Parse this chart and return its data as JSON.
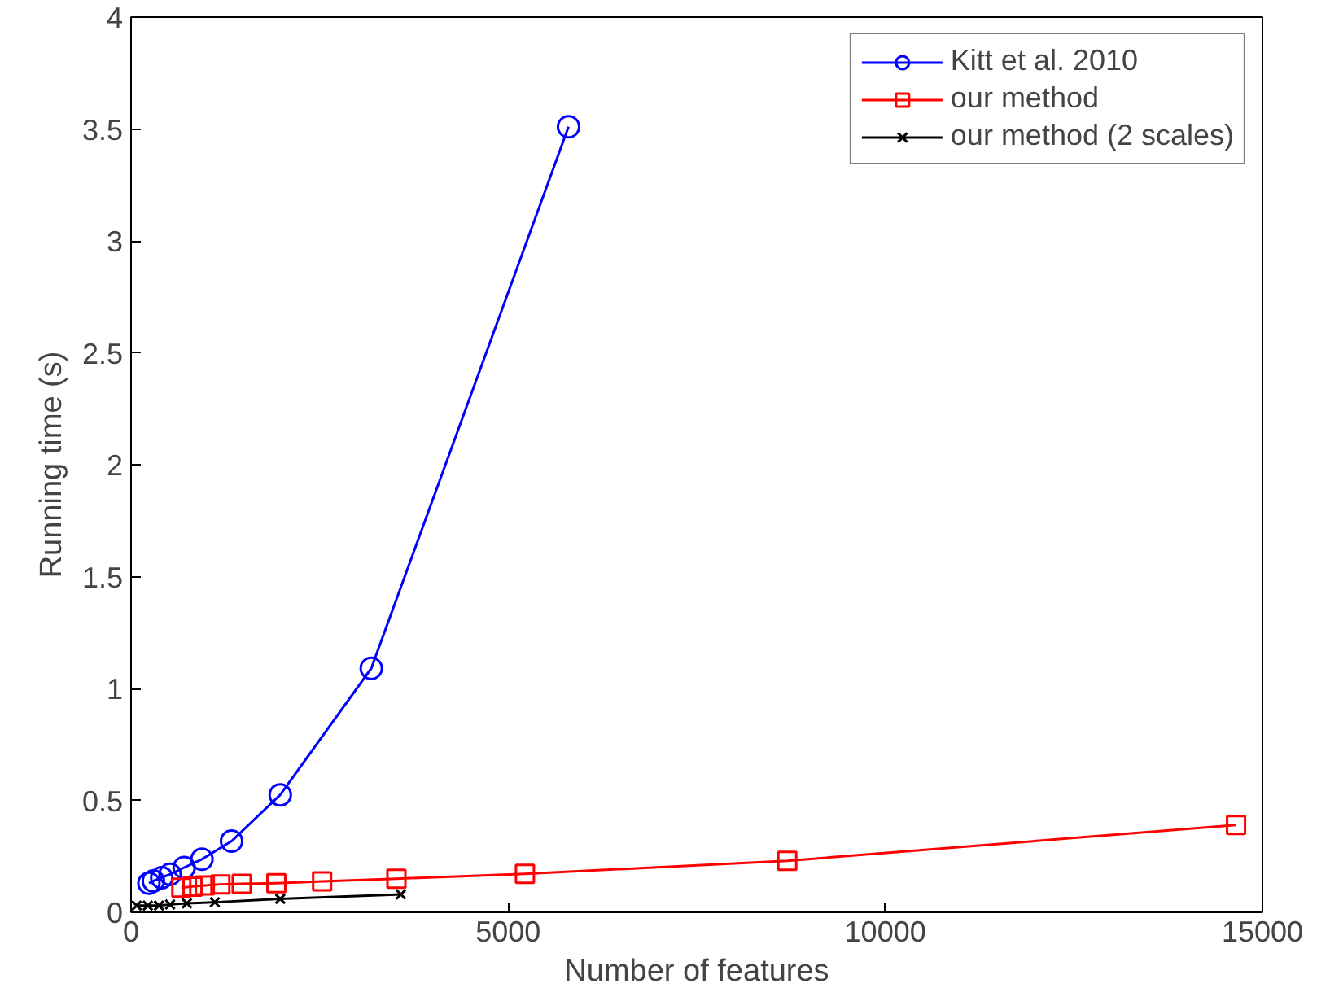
{
  "chart_data": {
    "type": "line",
    "xlabel": "Number of features",
    "ylabel": "Running time (s)",
    "xlim": [
      0,
      15000
    ],
    "ylim": [
      0,
      4
    ],
    "xticks": [
      0,
      5000,
      10000,
      15000
    ],
    "yticks": [
      0,
      0.5,
      1,
      1.5,
      2,
      2.5,
      3,
      3.5,
      4
    ],
    "grid": false,
    "legend": "top right",
    "series": [
      {
        "name": "Kitt et al. 2010",
        "color": "#0000ff",
        "marker": "circle",
        "x": [
          237,
          296,
          407,
          518,
          704,
          940,
          1333,
          1978,
          3185,
          5800
        ],
        "values": [
          0.13,
          0.14,
          0.155,
          0.17,
          0.2,
          0.237,
          0.318,
          0.525,
          1.09,
          3.51
        ]
      },
      {
        "name": "our method",
        "color": "#ff0000",
        "marker": "square",
        "x": [
          667,
          815,
          978,
          1185,
          1467,
          1926,
          2533,
          3518,
          5222,
          8700,
          14650
        ],
        "values": [
          0.11,
          0.115,
          0.12,
          0.125,
          0.127,
          0.13,
          0.138,
          0.15,
          0.172,
          0.23,
          0.39
        ]
      },
      {
        "name": "our method (2 scales)",
        "color": "#000000",
        "marker": "cross",
        "x": [
          74,
          222,
          370,
          518,
          741,
          1111,
          1978,
          3578
        ],
        "values": [
          0.03,
          0.03,
          0.03,
          0.035,
          0.04,
          0.045,
          0.06,
          0.08
        ]
      }
    ]
  }
}
